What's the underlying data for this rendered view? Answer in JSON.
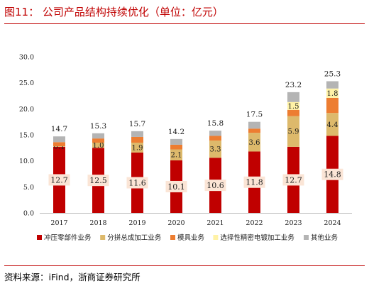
{
  "figure": {
    "title": "图11：  公司产品结构持续优化（单位：亿元）",
    "source": "资料来源：iFind，浙商证券研究所"
  },
  "chart_data": {
    "type": "bar",
    "stacked": true,
    "categories": [
      "2017",
      "2018",
      "2019",
      "2020",
      "2021",
      "2022",
      "2023",
      "2024"
    ],
    "series": [
      {
        "name": "冲压零部件业务",
        "color": "#c00000",
        "values": [
          12.7,
          12.5,
          11.6,
          10.1,
          10.6,
          11.8,
          12.7,
          14.8
        ]
      },
      {
        "name": "分拼总成加工业务",
        "color": "#ddb96b",
        "values": [
          0.1,
          1.0,
          1.9,
          2.1,
          3.3,
          3.6,
          5.9,
          4.4
        ]
      },
      {
        "name": "模具业务",
        "color": "#ed7d31",
        "values": [
          0.8,
          0.8,
          1.1,
          0.9,
          0.9,
          0.8,
          1.2,
          2.9
        ]
      },
      {
        "name": "选择性精密电镀加工业务",
        "color": "#fff2a6",
        "values": [
          0.0,
          0.0,
          0.0,
          0.0,
          0.0,
          0.0,
          1.5,
          1.8
        ]
      },
      {
        "name": "其他业务",
        "color": "#b4b4b4",
        "values": [
          1.1,
          1.0,
          1.1,
          1.1,
          1.0,
          1.3,
          1.9,
          1.4
        ]
      }
    ],
    "totals": [
      14.7,
      15.3,
      15.7,
      14.2,
      15.8,
      17.5,
      23.2,
      25.3
    ],
    "segment_labels": {
      "冲压零部件业务": [
        "12.7",
        "12.5",
        "11.6",
        "10.1",
        "10.6",
        "11.8",
        "12.7",
        "14.8"
      ],
      "分拼总成加工业务": [
        "0.1",
        "1.0",
        "1.9",
        "2.1",
        "3.3",
        "3.6",
        "5.9",
        "4.4"
      ],
      "选择性精密电镀加工业务": [
        "",
        "",
        "",
        "",
        "",
        "",
        "1.5",
        "1.8"
      ]
    },
    "y_ticks": [
      "0.0",
      "5.0",
      "10.0",
      "15.0",
      "20.0",
      "25.0",
      "30.0"
    ],
    "ylim": [
      0,
      30
    ],
    "grid": false,
    "legend_position": "bottom"
  }
}
